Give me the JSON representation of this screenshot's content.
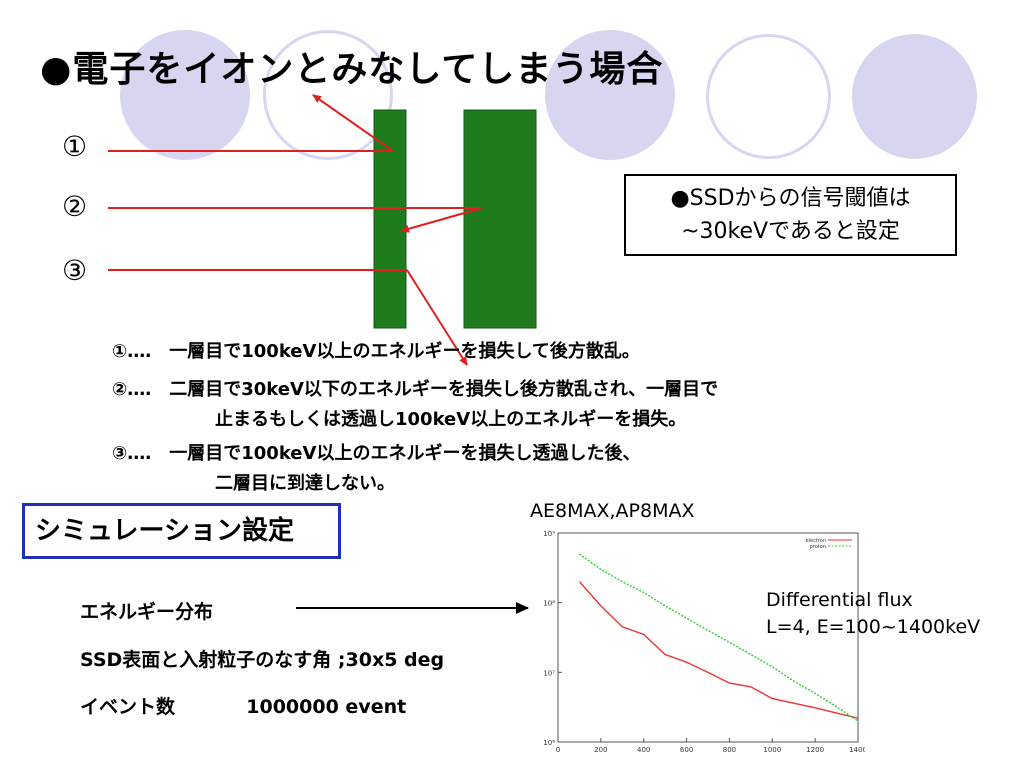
{
  "title": "●電子をイオンとみなしてしまう場合",
  "markers": [
    "①",
    "②",
    "③"
  ],
  "note": {
    "line1": "●SSDからの信号閾値は",
    "line2": "~30keVであると設定"
  },
  "descriptions": [
    {
      "line1": "①‥‥　一層目で100keV以上のエネルギーを損失して後方散乱。"
    },
    {
      "line1": "②‥‥　二層目で30keV以下のエネルギーを損失し後方散乱され、一層目で",
      "line2": "止まるもしくは透過し100keV以上のエネルギーを損失。"
    },
    {
      "line1": "③‥‥　一層目で100keV以上のエネルギーを損失し透過した後、",
      "line2": "二層目に到達しない。"
    }
  ],
  "simulation": {
    "heading": "シミュレーション設定",
    "energy": "エネルギー分布",
    "angle": "SSD表面と入射粒子のなす角 ;30x5 deg",
    "events_label": "イベント数",
    "events_value": "1000000 event"
  },
  "chart_title": "AE8MAX,AP8MAX",
  "flux_label": {
    "line1": "Differential flux",
    "line2": "L=4, E=100~1400keV"
  },
  "colors": {
    "detector": "#1e7b1e",
    "arrow": "#e02020",
    "decoration": "#d6d6f0",
    "sim_border": "#1f2fb8",
    "electron": "#ee3333",
    "proton": "#33cc33"
  },
  "chart_data": {
    "type": "line",
    "x": [
      100,
      200,
      300,
      400,
      500,
      600,
      700,
      800,
      900,
      1000,
      1100,
      1200,
      1300,
      1400
    ],
    "series": [
      {
        "name": "electron",
        "values": [
          200000000.0,
          90000000.0,
          45000000.0,
          35000000.0,
          18000000.0,
          14000000.0,
          10000000.0,
          7000000.0,
          6200000.0,
          4200000.0,
          3600000.0,
          3100000.0,
          2600000.0,
          2200000.0
        ]
      },
      {
        "name": "proton",
        "values": [
          500000000.0,
          300000000.0,
          200000000.0,
          140000000.0,
          90000000.0,
          60000000.0,
          40000000.0,
          27000000.0,
          18000000.0,
          12000000.0,
          7500000.0,
          5000000.0,
          3200000.0,
          2000000.0
        ]
      }
    ],
    "xlim": [
      0,
      1400
    ],
    "ylim": [
      1000000,
      1000000000
    ],
    "yscale": "log",
    "xticks": [
      "0",
      "200",
      "400",
      "600",
      "800",
      "1000",
      "1200",
      "1400"
    ],
    "yticks": [
      "10⁶",
      "10⁷",
      "10⁸",
      "10⁹"
    ],
    "legend": "top-right"
  }
}
